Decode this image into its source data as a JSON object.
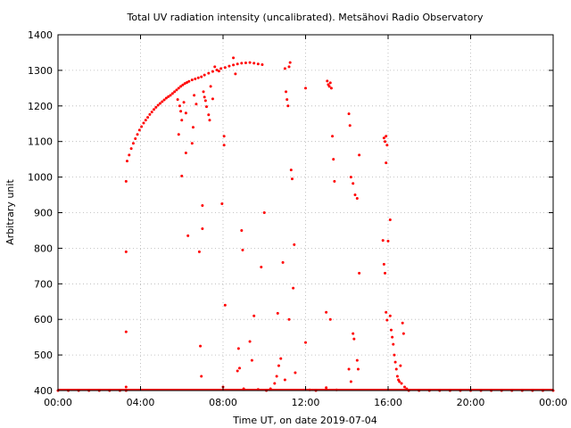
{
  "chart_data": {
    "type": "scatter",
    "title": "Total UV radiation intensity (uncalibrated). Metsähovi Radio Observatory",
    "xlabel": "Time UT, on date 2019-07-04",
    "ylabel": "Arbitrary unit",
    "xlim": [
      0,
      24
    ],
    "ylim": [
      400,
      1400
    ],
    "x_ticks": [
      0,
      4,
      8,
      12,
      16,
      20,
      24
    ],
    "x_tick_labels": [
      "00:00",
      "04:00",
      "08:00",
      "12:00",
      "16:00",
      "20:00",
      "00:00"
    ],
    "y_ticks": [
      400,
      500,
      600,
      700,
      800,
      900,
      1000,
      1100,
      1200,
      1300,
      1400
    ],
    "y_tick_labels": [
      "400",
      "500",
      "600",
      "700",
      "800",
      "900",
      "1000",
      "1100",
      "1200",
      "1300",
      "1400"
    ],
    "grid": true,
    "legend": "none",
    "marker_color": "#ff0000",
    "series": [
      {
        "values": [
          [
            0.0,
            400
          ],
          [
            0.5,
            400
          ],
          [
            1.0,
            400
          ],
          [
            1.5,
            400
          ],
          [
            2.0,
            400
          ],
          [
            2.5,
            400
          ],
          [
            3.0,
            400
          ],
          [
            3.3,
            400
          ],
          [
            3.3,
            410
          ],
          [
            3.3,
            565
          ],
          [
            3.3,
            790
          ],
          [
            3.3,
            988
          ],
          [
            3.35,
            1045
          ],
          [
            3.45,
            1062
          ],
          [
            3.55,
            1080
          ],
          [
            3.65,
            1095
          ],
          [
            3.75,
            1108
          ],
          [
            3.85,
            1120
          ],
          [
            3.95,
            1132
          ],
          [
            4.05,
            1142
          ],
          [
            4.15,
            1152
          ],
          [
            4.25,
            1160
          ],
          [
            4.35,
            1168
          ],
          [
            4.45,
            1176
          ],
          [
            4.55,
            1183
          ],
          [
            4.65,
            1190
          ],
          [
            4.75,
            1196
          ],
          [
            4.85,
            1202
          ],
          [
            4.95,
            1207
          ],
          [
            5.05,
            1212
          ],
          [
            5.15,
            1217
          ],
          [
            5.25,
            1222
          ],
          [
            5.35,
            1226
          ],
          [
            5.45,
            1230
          ],
          [
            5.55,
            1235
          ],
          [
            5.65,
            1240
          ],
          [
            5.75,
            1245
          ],
          [
            5.85,
            1250
          ],
          [
            5.95,
            1255
          ],
          [
            6.05,
            1259
          ],
          [
            6.15,
            1263
          ],
          [
            6.25,
            1266
          ],
          [
            6.35,
            1269
          ],
          [
            6.5,
            1273
          ],
          [
            6.65,
            1276
          ],
          [
            6.8,
            1279
          ],
          [
            6.95,
            1282
          ],
          [
            7.1,
            1287
          ],
          [
            7.3,
            1292
          ],
          [
            7.5,
            1297
          ],
          [
            7.7,
            1301
          ],
          [
            7.9,
            1305
          ],
          [
            8.1,
            1308
          ],
          [
            8.3,
            1312
          ],
          [
            8.5,
            1315
          ],
          [
            8.7,
            1318
          ],
          [
            8.9,
            1320
          ],
          [
            9.1,
            1321
          ],
          [
            9.3,
            1322
          ],
          [
            9.5,
            1320
          ],
          [
            9.7,
            1318
          ],
          [
            9.9,
            1316
          ],
          [
            5.8,
            1218
          ],
          [
            5.9,
            1200
          ],
          [
            5.95,
            1185
          ],
          [
            6.0,
            1160
          ],
          [
            5.85,
            1120
          ],
          [
            6.1,
            1210
          ],
          [
            6.2,
            1180
          ],
          [
            6.0,
            1003
          ],
          [
            6.2,
            1068
          ],
          [
            6.3,
            835
          ],
          [
            6.5,
            1095
          ],
          [
            6.55,
            1140
          ],
          [
            6.6,
            1230
          ],
          [
            6.7,
            1205
          ],
          [
            6.85,
            790
          ],
          [
            6.9,
            525
          ],
          [
            6.95,
            440
          ],
          [
            7.0,
            920
          ],
          [
            7.0,
            855
          ],
          [
            7.05,
            1240
          ],
          [
            7.1,
            1225
          ],
          [
            7.15,
            1215
          ],
          [
            7.2,
            1198
          ],
          [
            7.3,
            1175
          ],
          [
            7.35,
            1160
          ],
          [
            7.4,
            1255
          ],
          [
            7.5,
            1220
          ],
          [
            7.6,
            1310
          ],
          [
            7.8,
            1298
          ],
          [
            7.95,
            925
          ],
          [
            8.05,
            1115
          ],
          [
            8.05,
            1090
          ],
          [
            8.1,
            640
          ],
          [
            8.0,
            410
          ],
          [
            8.5,
            1335
          ],
          [
            8.6,
            1290
          ],
          [
            8.7,
            455
          ],
          [
            8.75,
            518
          ],
          [
            8.8,
            463
          ],
          [
            8.9,
            850
          ],
          [
            8.95,
            795
          ],
          [
            9.0,
            405
          ],
          [
            9.3,
            538
          ],
          [
            9.4,
            485
          ],
          [
            9.5,
            610
          ],
          [
            9.7,
            403
          ],
          [
            9.85,
            747
          ],
          [
            10.0,
            900
          ],
          [
            10.1,
            400
          ],
          [
            10.3,
            405
          ],
          [
            10.5,
            420
          ],
          [
            10.6,
            440
          ],
          [
            10.65,
            617
          ],
          [
            10.7,
            470
          ],
          [
            10.8,
            490
          ],
          [
            10.9,
            760
          ],
          [
            11.0,
            1305
          ],
          [
            11.05,
            1240
          ],
          [
            11.1,
            1218
          ],
          [
            11.15,
            1200
          ],
          [
            11.2,
            1310
          ],
          [
            11.25,
            1322
          ],
          [
            11.3,
            1020
          ],
          [
            11.35,
            995
          ],
          [
            11.4,
            688
          ],
          [
            11.45,
            810
          ],
          [
            11.5,
            450
          ],
          [
            11.0,
            430
          ],
          [
            11.2,
            600
          ],
          [
            12.0,
            1250
          ],
          [
            12.0,
            535
          ],
          [
            12.2,
            402
          ],
          [
            12.5,
            400
          ],
          [
            13.05,
            1270
          ],
          [
            13.1,
            1260
          ],
          [
            13.15,
            1255
          ],
          [
            13.2,
            1265
          ],
          [
            13.25,
            1250
          ],
          [
            13.3,
            1115
          ],
          [
            13.35,
            1050
          ],
          [
            13.4,
            988
          ],
          [
            13.0,
            620
          ],
          [
            13.2,
            600
          ],
          [
            13.0,
            408
          ],
          [
            13.5,
            402
          ],
          [
            14.1,
            1178
          ],
          [
            14.15,
            1145
          ],
          [
            14.2,
            1000
          ],
          [
            14.3,
            982
          ],
          [
            14.4,
            950
          ],
          [
            14.5,
            940
          ],
          [
            14.6,
            1062
          ],
          [
            14.3,
            560
          ],
          [
            14.35,
            545
          ],
          [
            14.5,
            485
          ],
          [
            14.55,
            460
          ],
          [
            14.6,
            730
          ],
          [
            14.1,
            460
          ],
          [
            14.2,
            425
          ],
          [
            15.8,
            1110
          ],
          [
            15.85,
            1100
          ],
          [
            15.9,
            1115
          ],
          [
            15.95,
            1090
          ],
          [
            15.9,
            1040
          ],
          [
            15.75,
            822
          ],
          [
            15.8,
            755
          ],
          [
            15.85,
            730
          ],
          [
            16.0,
            820
          ],
          [
            16.1,
            880
          ],
          [
            15.9,
            620
          ],
          [
            15.95,
            598
          ],
          [
            16.1,
            610
          ],
          [
            16.15,
            570
          ],
          [
            16.2,
            550
          ],
          [
            16.25,
            530
          ],
          [
            16.3,
            500
          ],
          [
            16.35,
            480
          ],
          [
            16.4,
            460
          ],
          [
            16.45,
            440
          ],
          [
            16.5,
            430
          ],
          [
            16.55,
            425
          ],
          [
            16.6,
            470
          ],
          [
            16.65,
            420
          ],
          [
            16.7,
            590
          ],
          [
            16.75,
            560
          ],
          [
            16.8,
            410
          ],
          [
            16.9,
            405
          ],
          [
            17.0,
            400
          ],
          [
            17.5,
            400
          ],
          [
            18.0,
            400
          ],
          [
            18.5,
            400
          ],
          [
            19.0,
            400
          ],
          [
            19.5,
            400
          ],
          [
            20.0,
            400
          ],
          [
            20.5,
            400
          ],
          [
            21.0,
            400
          ],
          [
            21.5,
            400
          ],
          [
            22.0,
            400
          ],
          [
            22.5,
            400
          ],
          [
            23.0,
            400
          ],
          [
            23.5,
            400
          ],
          [
            24.0,
            400
          ]
        ]
      }
    ]
  }
}
